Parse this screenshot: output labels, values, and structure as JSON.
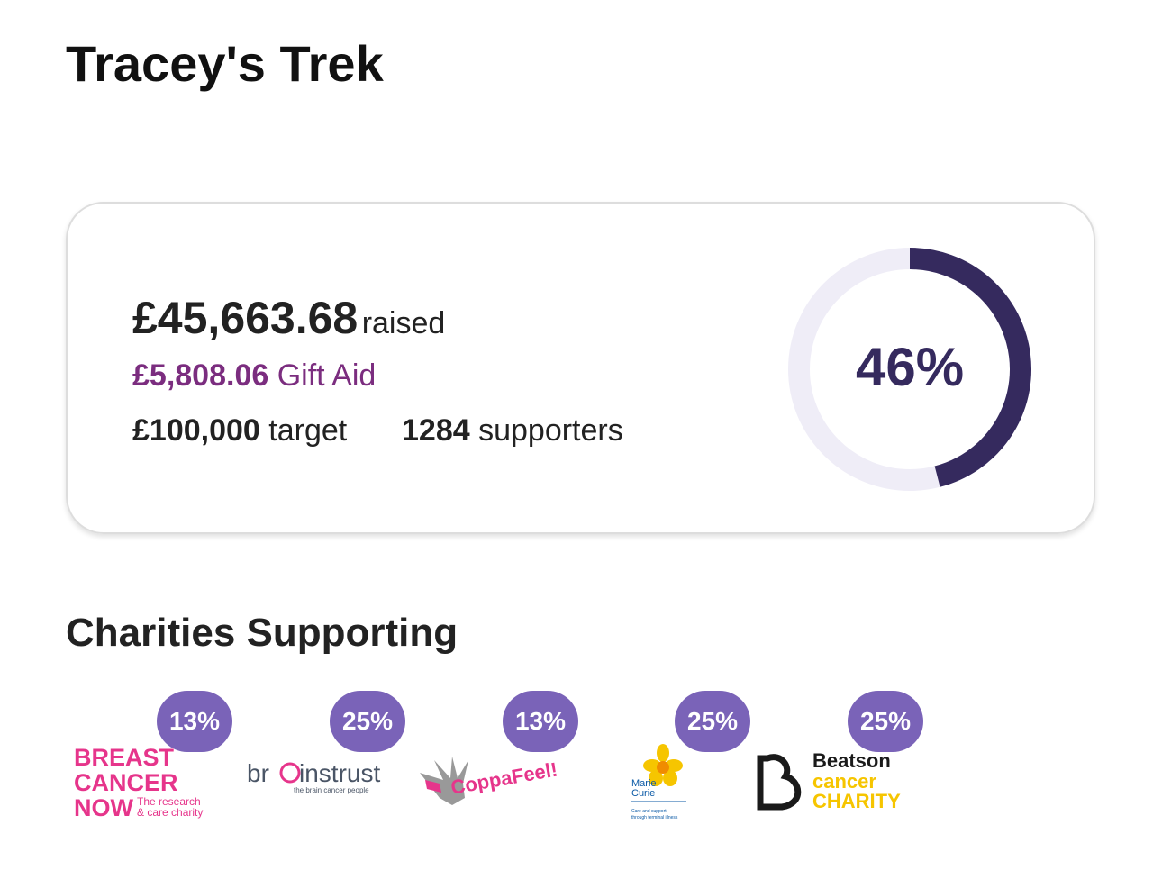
{
  "header": {
    "title": "Tracey's Trek"
  },
  "summary": {
    "raised_amount": "£45,663.68",
    "raised_label": "raised",
    "gift_aid_amount": "£5,808.06",
    "gift_aid_label": "Gift Aid",
    "target_amount": "£100,000",
    "target_label": "target",
    "supporters_count": "1284",
    "supporters_label": "supporters"
  },
  "progress": {
    "value": 46,
    "label": "46%"
  },
  "charities": {
    "title": "Charities Supporting",
    "items": [
      {
        "share": "13%",
        "logo_text": [
          "BREAST",
          "CANCER",
          "NOW",
          "The research",
          "& care charity"
        ]
      },
      {
        "share": "25%",
        "logo_text": [
          "br",
          "instrust",
          "the brain cancer people"
        ]
      },
      {
        "share": "13%",
        "logo_text": [
          "CoppaFeel!"
        ]
      },
      {
        "share": "25%",
        "logo_text": [
          "Marie",
          "Curie",
          "Care and support",
          "through terminal illness"
        ]
      },
      {
        "share": "25%",
        "logo_text": [
          "Beatson",
          "cancer",
          "CHARITY"
        ]
      }
    ]
  }
}
